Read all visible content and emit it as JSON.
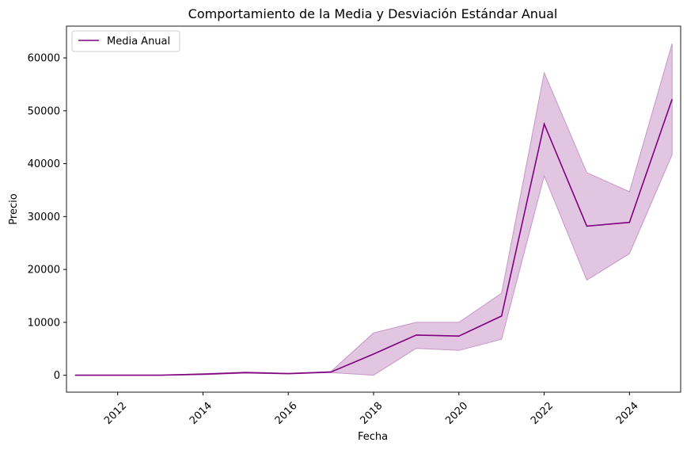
{
  "colors": {
    "line": "#800080",
    "band": "#c896c8",
    "axis": "#000000",
    "background": "#ffffff"
  },
  "chart_data": {
    "type": "line",
    "title": "Comportamiento de la Media y Desviación Estándar Anual",
    "xlabel": "Fecha",
    "ylabel": "Precio",
    "xlim": [
      2010.8,
      2025.2
    ],
    "ylim": [
      -3200,
      66000
    ],
    "xticks": [
      2012,
      2014,
      2016,
      2018,
      2020,
      2022,
      2024
    ],
    "yticks": [
      0,
      10000,
      20000,
      30000,
      40000,
      50000,
      60000
    ],
    "legend": {
      "position": "top-left",
      "entries": [
        "Media Anual"
      ]
    },
    "series": [
      {
        "name": "Media Anual",
        "x": [
          2011,
          2012,
          2013,
          2014,
          2015,
          2016,
          2017,
          2018,
          2019,
          2020,
          2021,
          2022,
          2023,
          2024,
          2025
        ],
        "values": [
          0,
          0,
          0,
          200,
          500,
          300,
          600,
          4000,
          7600,
          7400,
          11200,
          47500,
          28200,
          28900,
          52200
        ],
        "upper": [
          0,
          0,
          0,
          300,
          600,
          350,
          700,
          8000,
          10000,
          10000,
          15500,
          57200,
          38300,
          34700,
          62700
        ],
        "lower": [
          0,
          0,
          0,
          100,
          400,
          250,
          500,
          0,
          5100,
          4700,
          6800,
          37700,
          18000,
          23000,
          41700
        ]
      }
    ]
  }
}
